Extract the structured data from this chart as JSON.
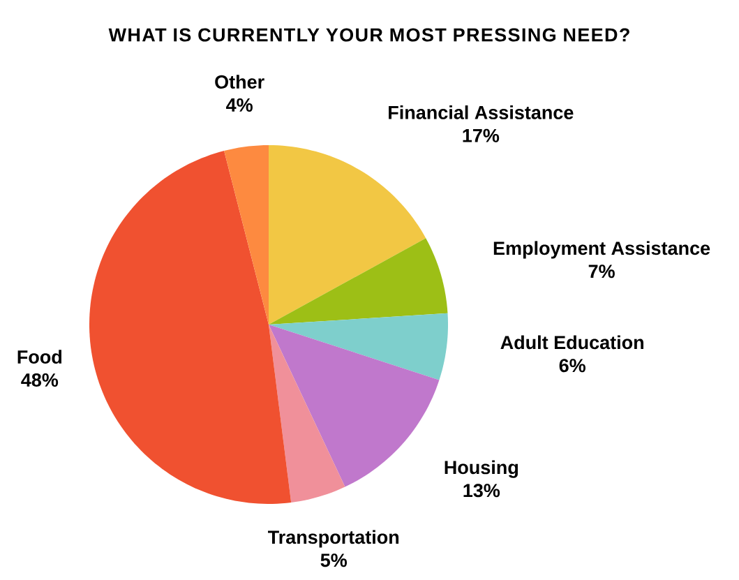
{
  "chart_data": {
    "type": "pie",
    "title": "WHAT IS CURRENTLY YOUR MOST PRESSING NEED?",
    "categories": [
      "Financial Assistance",
      "Employment Assistance",
      "Adult Education",
      "Housing",
      "Transportation",
      "Food",
      "Other"
    ],
    "values": [
      17,
      7,
      6,
      13,
      5,
      48,
      4
    ],
    "value_labels": [
      "17%",
      "7%",
      "6%",
      "13%",
      "5%",
      "48%",
      "4%"
    ],
    "colors": [
      "#f2c744",
      "#9dbf16",
      "#7ecfcc",
      "#c078cc",
      "#f0909a",
      "#f05130",
      "#fd8a40"
    ]
  }
}
